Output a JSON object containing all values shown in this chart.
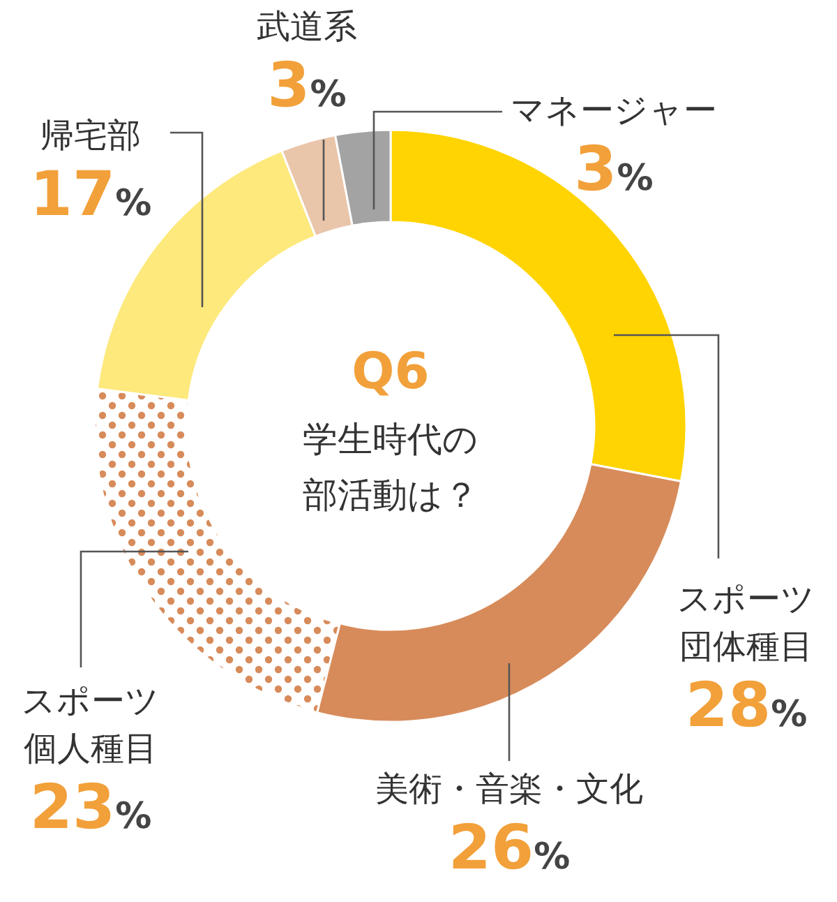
{
  "chart_data": {
    "type": "donut",
    "title": "Q6",
    "subtitle": "学生時代の部活動は？",
    "categories": [
      "スポーツ団体種目",
      "美術・音楽・文化",
      "スポーツ個人種目",
      "帰宅部",
      "武道系",
      "マネージャー"
    ],
    "values": [
      28,
      26,
      23,
      17,
      3,
      3
    ],
    "colors": [
      "#ffd400",
      "#d78b5a",
      "#d78b5a",
      "#fde97c",
      "#e9c5aa",
      "#a3a3a3"
    ],
    "value_labels": [
      "28%",
      "26%",
      "23%",
      "17%",
      "3%",
      "3%"
    ]
  }
}
